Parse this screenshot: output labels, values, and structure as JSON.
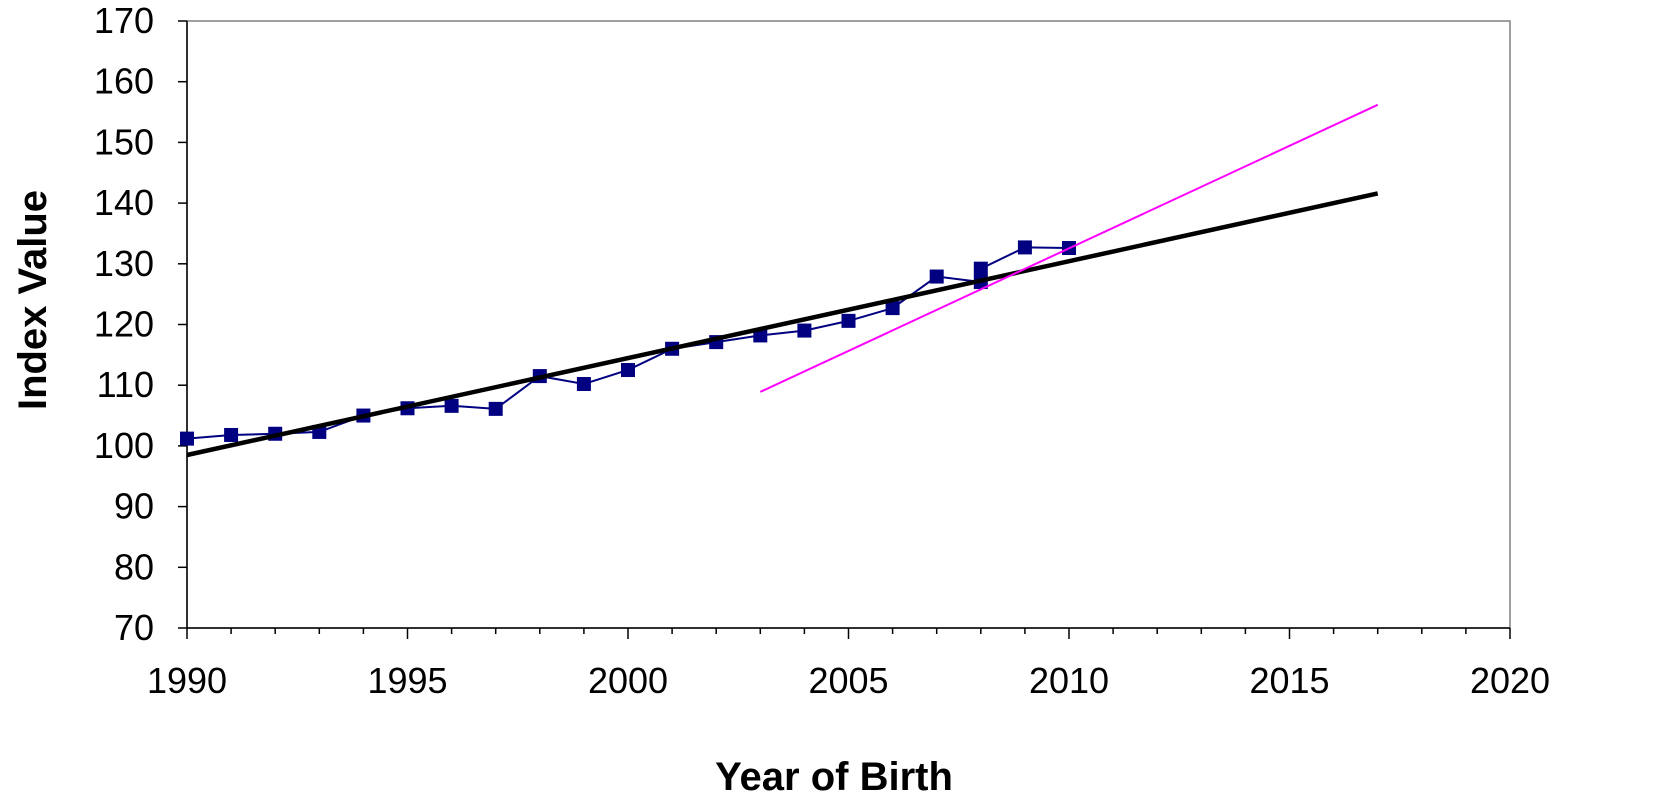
{
  "chart_data": {
    "type": "line",
    "title": "",
    "xlabel": "Year of Birth",
    "ylabel": "Index Value",
    "xlim": [
      1990,
      2020
    ],
    "ylim": [
      70,
      170
    ],
    "x_ticks": [
      1990,
      1995,
      2000,
      2005,
      2010,
      2015,
      2020
    ],
    "x_tick_labels": [
      "1990",
      "1995",
      "2000",
      "2005",
      "2010",
      "2015",
      "2020"
    ],
    "y_ticks": [
      70,
      80,
      90,
      100,
      110,
      120,
      130,
      140,
      150,
      160,
      170
    ],
    "y_tick_labels": [
      "70",
      "80",
      "90",
      "100",
      "110",
      "120",
      "130",
      "140",
      "150",
      "160",
      "170"
    ],
    "grid": false,
    "legend": "none",
    "series": [
      {
        "kind": "line-markers",
        "color": "#000080",
        "marker": "square",
        "x": [
          1990,
          1991,
          1992,
          1993,
          1994,
          1995,
          1996,
          1997,
          1998,
          1999,
          2000,
          2001,
          2002,
          2003,
          2004,
          2005,
          2006,
          2007,
          2008,
          2008,
          2009,
          2010
        ],
        "y": [
          101.2,
          101.8,
          102.0,
          102.3,
          105.0,
          106.2,
          106.6,
          106.1,
          111.5,
          110.2,
          112.5,
          116.0,
          117.1,
          118.2,
          119.0,
          120.6,
          122.7,
          127.9,
          127.0,
          129.2,
          132.7,
          132.6
        ]
      },
      {
        "kind": "trendline",
        "color": "#000000",
        "x": [
          1990,
          2017
        ],
        "y": [
          98.5,
          141.6
        ]
      },
      {
        "kind": "trendline",
        "color": "#ff00ff",
        "x": [
          2003,
          2017
        ],
        "y": [
          108.9,
          156.2
        ]
      }
    ]
  }
}
